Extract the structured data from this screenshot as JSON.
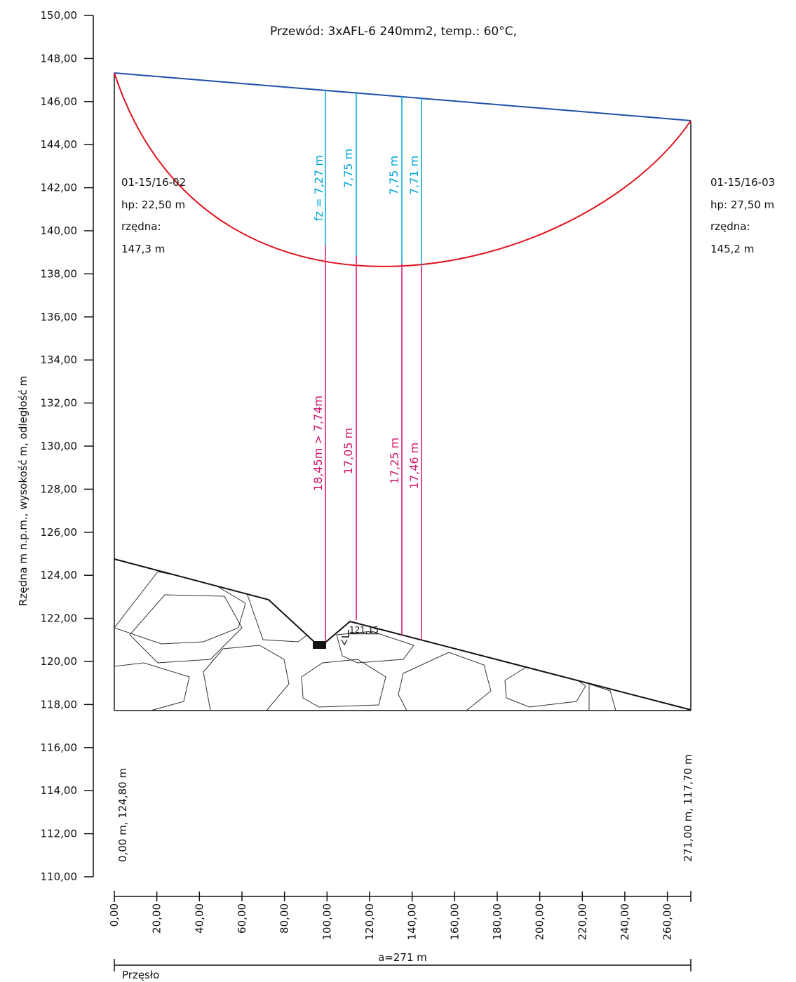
{
  "title": "Przewód: 3xAFL-6 240mm2, temp.: 60°C,",
  "y_axis": {
    "label": "Rzędna m n.p.m., wysokość m, odległość m",
    "ticks": [
      "150,00",
      "148,00",
      "146,00",
      "144,00",
      "142,00",
      "140,00",
      "138,00",
      "136,00",
      "134,00",
      "132,00",
      "130,00",
      "128,00",
      "126,00",
      "124,00",
      "122,00",
      "120,00",
      "118,00",
      "116,00",
      "114,00",
      "112,00",
      "110,00"
    ]
  },
  "x_axis": {
    "ticks": [
      "0,00",
      "20,00",
      "40,00",
      "60,00",
      "80,00",
      "100,00",
      "120,00",
      "140,00",
      "160,00",
      "180,00",
      "200,00",
      "220,00",
      "240,00",
      "260,00"
    ]
  },
  "left_pole": {
    "name": "01-15/16-02",
    "hp": "hp: 22,50 m",
    "rzedna_label": "rzędna:",
    "rzedna_value": "147,3 m",
    "ground": "0,00 m, 124,80 m"
  },
  "right_pole": {
    "name": "01-15/16-03",
    "hp": "hp: 27,50 m",
    "rzedna_label": "rzędna:",
    "rzedna_value": "145,2 m",
    "ground": "271,00 m, 117,70 m"
  },
  "sag_labels": [
    "fz = 7,27 m",
    "7,75 m",
    "7,75 m",
    "7,71 m"
  ],
  "clearance_labels": [
    "18,45m > 7,74m",
    "17,05 m",
    "17,25 m",
    "17,46 m"
  ],
  "obstacle_level": "121,15",
  "span_label": "a=271 m",
  "span_name": "Przęsło",
  "colors": {
    "chord": "#1f4fa8",
    "conductor": "#e0141e",
    "sag": "#00a6d6",
    "clearance": "#d4146a"
  },
  "chart_data": {
    "type": "line",
    "title": "Przewód: 3xAFL-6 240mm2, temp.: 60°C,",
    "ylabel": "Rzędna m n.p.m., wysokość m, odległość m",
    "xlabel": "",
    "ylim": [
      110,
      150
    ],
    "xlim": [
      0,
      271
    ],
    "series": [
      {
        "type": "line",
        "x": [
          0,
          271
        ],
        "y": [
          147.3,
          145.2
        ]
      },
      {
        "type": "line",
        "x": [
          0,
          25,
          50,
          75,
          100,
          115,
          136,
          145,
          165,
          190,
          215,
          240,
          271
        ],
        "y": [
          147.3,
          144.6,
          142.3,
          140.6,
          139.4,
          138.95,
          138.6,
          138.55,
          138.9,
          139.7,
          140.9,
          142.5,
          145.2
        ]
      },
      {
        "type": "line",
        "x": [
          0,
          72,
          93,
          100,
          109,
          271
        ],
        "y": [
          124.8,
          122.9,
          120.8,
          120.8,
          121.9,
          117.7
        ]
      }
    ],
    "points": [
      {
        "x": 99.5,
        "sag": 7.27,
        "conductor": 139.25,
        "clearance": 18.45
      },
      {
        "x": 113.5,
        "sag": 7.75,
        "conductor": 138.9,
        "clearance": 17.05
      },
      {
        "x": 135.0,
        "sag": 7.75,
        "conductor": 138.55,
        "clearance": 17.25
      },
      {
        "x": 144.0,
        "sag": 7.71,
        "conductor": 138.5,
        "clearance": 17.46
      }
    ]
  }
}
